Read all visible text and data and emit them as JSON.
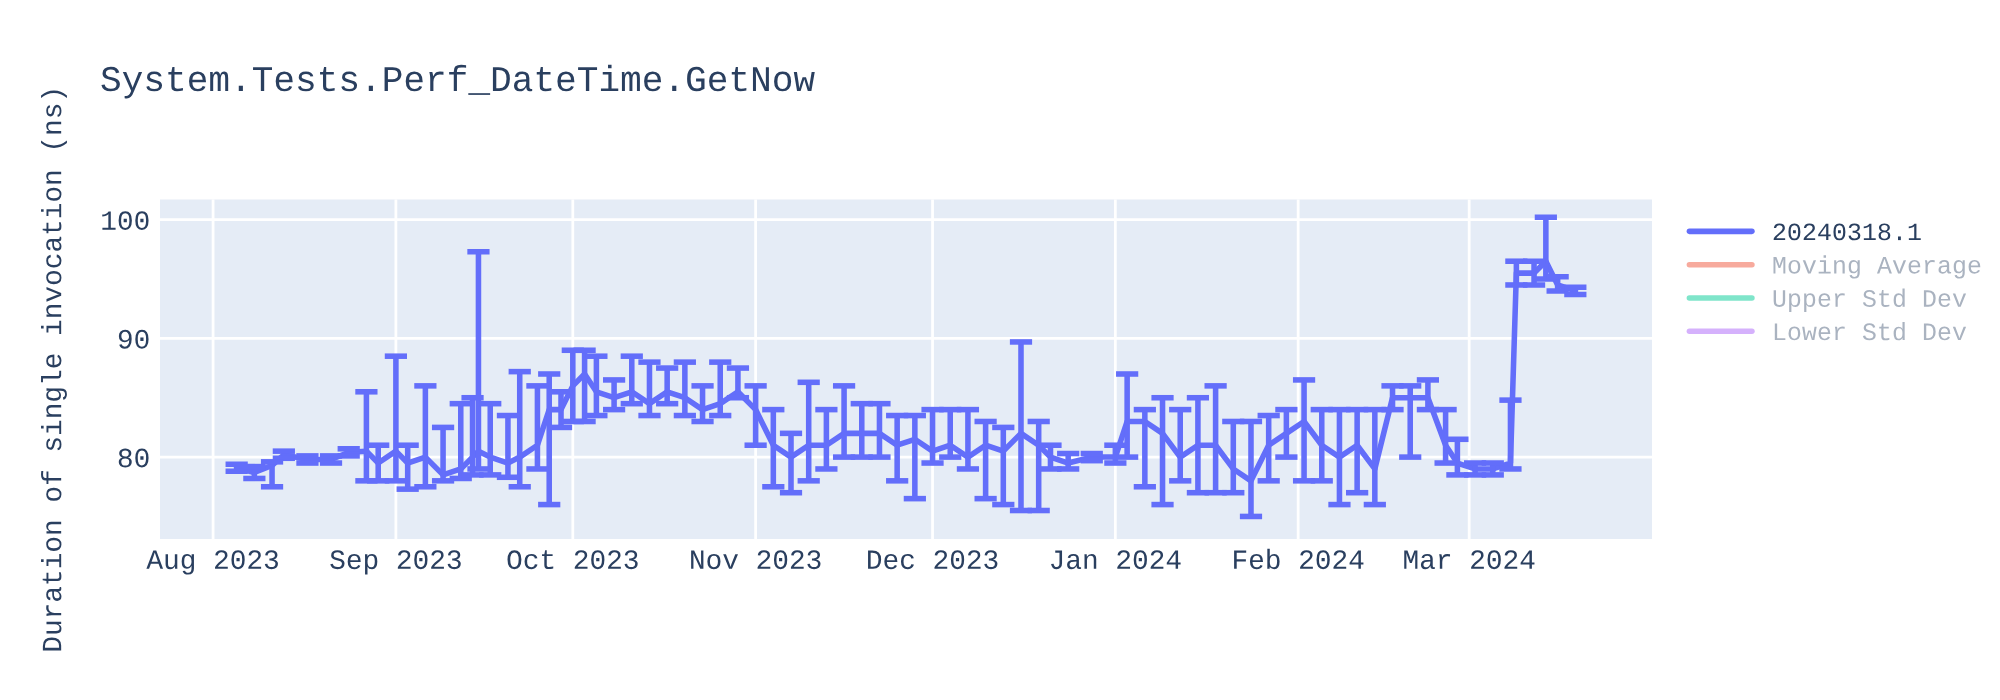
{
  "chart_data": {
    "type": "line",
    "title": "System.Tests.Perf_DateTime.GetNow",
    "ylabel": "Duration of single invocation (ns)",
    "x": [
      "2023-08-05",
      "2023-08-08",
      "2023-08-11",
      "2023-08-13",
      "2023-08-17",
      "2023-08-21",
      "2023-08-24",
      "2023-08-27",
      "2023-08-29",
      "2023-09-01",
      "2023-09-03",
      "2023-09-06",
      "2023-09-09",
      "2023-09-12",
      "2023-09-14",
      "2023-09-15",
      "2023-09-17",
      "2023-09-20",
      "2023-09-22",
      "2023-09-25",
      "2023-09-27",
      "2023-09-29",
      "2023-10-01",
      "2023-10-03",
      "2023-10-05",
      "2023-10-08",
      "2023-10-11",
      "2023-10-14",
      "2023-10-17",
      "2023-10-20",
      "2023-10-23",
      "2023-10-26",
      "2023-10-29",
      "2023-11-01",
      "2023-11-04",
      "2023-11-07",
      "2023-11-10",
      "2023-11-13",
      "2023-11-16",
      "2023-11-19",
      "2023-11-22",
      "2023-11-25",
      "2023-11-28",
      "2023-12-01",
      "2023-12-04",
      "2023-12-07",
      "2023-12-10",
      "2023-12-13",
      "2023-12-16",
      "2023-12-19",
      "2023-12-21",
      "2023-12-24",
      "2023-12-28",
      "2024-01-01",
      "2024-01-03",
      "2024-01-06",
      "2024-01-09",
      "2024-01-12",
      "2024-01-15",
      "2024-01-18",
      "2024-01-21",
      "2024-01-24",
      "2024-01-27",
      "2024-01-30",
      "2024-02-02",
      "2024-02-05",
      "2024-02-08",
      "2024-02-11",
      "2024-02-14",
      "2024-02-17",
      "2024-02-20",
      "2024-02-23",
      "2024-02-26",
      "2024-02-28",
      "2024-03-02",
      "2024-03-05",
      "2024-03-08",
      "2024-03-09",
      "2024-03-12",
      "2024-03-14",
      "2024-03-16",
      "2024-03-19"
    ],
    "series": [
      {
        "name": "20240318.1",
        "color": "#636efa",
        "values": [
          79.1,
          78.7,
          79.3,
          80.2,
          79.8,
          79.8,
          80.4,
          80.5,
          79.5,
          80.5,
          79.5,
          80,
          78.5,
          79,
          80,
          80.5,
          80,
          79.5,
          80,
          81,
          84,
          84,
          86,
          87,
          85.5,
          85,
          85.5,
          84.5,
          85.5,
          85,
          84,
          84.5,
          85.5,
          84,
          81,
          80,
          81,
          81,
          82,
          82,
          82,
          81,
          81.5,
          80.5,
          81,
          80,
          81,
          80.5,
          82,
          81,
          80,
          79.5,
          80,
          80,
          83,
          83,
          82,
          80,
          81,
          81,
          79,
          78,
          81,
          82,
          83,
          81,
          80,
          81,
          79,
          85,
          85,
          85,
          81,
          79.5,
          79,
          79,
          79.5,
          95.5,
          95.5,
          96.5,
          94.5,
          94
        ],
        "errors": [
          [
            78.8,
            79.4
          ],
          [
            78.2,
            79.2
          ],
          [
            77.5,
            79.6
          ],
          [
            79.9,
            80.5
          ],
          [
            79.5,
            80.1
          ],
          [
            79.5,
            80.1
          ],
          [
            80.1,
            80.7
          ],
          [
            78,
            85.5
          ],
          [
            78,
            81
          ],
          [
            78,
            88.5
          ],
          [
            77.3,
            81
          ],
          [
            77.5,
            86
          ],
          [
            78,
            82.5
          ],
          [
            78.2,
            84.5
          ],
          [
            78.5,
            85
          ],
          [
            79,
            97.3
          ],
          [
            78.5,
            84.5
          ],
          [
            78.3,
            83.5
          ],
          [
            77.5,
            87.2
          ],
          [
            79,
            86
          ],
          [
            76,
            87
          ],
          [
            82.5,
            85.5
          ],
          [
            83,
            89
          ],
          [
            83,
            89
          ],
          [
            83.5,
            88.5
          ],
          [
            84,
            86.5
          ],
          [
            84.5,
            88.5
          ],
          [
            83.5,
            88
          ],
          [
            84.5,
            87.5
          ],
          [
            83.5,
            88
          ],
          [
            83,
            86
          ],
          [
            83.5,
            88
          ],
          [
            85,
            87.5
          ],
          [
            81,
            86
          ],
          [
            77.5,
            84
          ],
          [
            77,
            82
          ],
          [
            78,
            86.3
          ],
          [
            79,
            84
          ],
          [
            80,
            86
          ],
          [
            80,
            84.5
          ],
          [
            80,
            84.5
          ],
          [
            78,
            83.5
          ],
          [
            76.5,
            83.5
          ],
          [
            79.5,
            84
          ],
          [
            80,
            84
          ],
          [
            79,
            84
          ],
          [
            76.5,
            83
          ],
          [
            76,
            82.5
          ],
          [
            75.5,
            89.7
          ],
          [
            75.5,
            83
          ],
          [
            79,
            81
          ],
          [
            79,
            80.3
          ],
          [
            79.7,
            80.3
          ],
          [
            79.5,
            81
          ],
          [
            80,
            87
          ],
          [
            77.5,
            84
          ],
          [
            76,
            85
          ],
          [
            78,
            84
          ],
          [
            77,
            85
          ],
          [
            77,
            86
          ],
          [
            77,
            83
          ],
          [
            75,
            83
          ],
          [
            78,
            83.5
          ],
          [
            80,
            84
          ],
          [
            78,
            86.5
          ],
          [
            78,
            84
          ],
          [
            76,
            84
          ],
          [
            77,
            84
          ],
          [
            76,
            84
          ],
          [
            84,
            86
          ],
          [
            80,
            86
          ],
          [
            84,
            86.5
          ],
          [
            79.5,
            84
          ],
          [
            78.5,
            81.5
          ],
          [
            78.5,
            79.5
          ],
          [
            78.5,
            79.5
          ],
          [
            79,
            84.8
          ],
          [
            94.5,
            96.5
          ],
          [
            94.5,
            96.5
          ],
          [
            95,
            100.2
          ],
          [
            94,
            95.2
          ],
          [
            93.7,
            94.3
          ]
        ]
      },
      {
        "name": "Moving Average",
        "color": "#ef553b",
        "values": [
          null,
          null,
          null,
          null,
          null,
          null,
          null,
          null,
          null,
          null,
          null,
          null,
          null,
          null,
          null,
          null,
          null,
          null,
          null,
          null,
          null,
          null,
          null,
          null,
          null,
          null,
          null,
          null,
          null,
          null,
          null,
          null,
          null,
          null,
          null,
          null,
          null,
          null,
          null,
          null,
          null,
          null,
          null,
          null,
          null,
          null,
          null,
          null,
          null,
          null,
          null,
          null,
          null,
          null,
          null,
          null,
          null,
          null,
          null,
          null,
          null,
          null,
          null,
          null,
          null,
          null,
          null,
          null,
          null,
          null,
          null,
          null,
          null,
          null,
          null,
          null,
          null,
          null,
          null,
          null,
          null,
          null
        ]
      },
      {
        "name": "Upper Std Dev",
        "color": "#00cc96",
        "values": [
          null,
          null,
          null,
          null,
          null,
          null,
          null,
          null,
          null,
          null,
          null,
          null,
          null,
          null,
          null,
          null,
          null,
          null,
          null,
          null,
          null,
          null,
          null,
          null,
          null,
          null,
          null,
          null,
          null,
          null,
          null,
          null,
          null,
          null,
          null,
          null,
          null,
          null,
          null,
          null,
          null,
          null,
          null,
          null,
          null,
          null,
          null,
          null,
          null,
          null,
          null,
          null,
          null,
          null,
          null,
          null,
          null,
          null,
          null,
          null,
          null,
          null,
          null,
          null,
          null,
          null,
          null,
          null,
          null,
          null,
          null,
          null,
          null,
          null,
          null,
          null,
          null,
          null,
          null,
          null,
          null,
          null
        ]
      },
      {
        "name": "Lower Std Dev",
        "color": "#ab63fa",
        "values": [
          null,
          null,
          null,
          null,
          null,
          null,
          null,
          null,
          null,
          null,
          null,
          null,
          null,
          null,
          null,
          null,
          null,
          null,
          null,
          null,
          null,
          null,
          null,
          null,
          null,
          null,
          null,
          null,
          null,
          null,
          null,
          null,
          null,
          null,
          null,
          null,
          null,
          null,
          null,
          null,
          null,
          null,
          null,
          null,
          null,
          null,
          null,
          null,
          null,
          null,
          null,
          null,
          null,
          null,
          null,
          null,
          null,
          null,
          null,
          null,
          null,
          null,
          null,
          null,
          null,
          null,
          null,
          null,
          null,
          null,
          null,
          null,
          null,
          null,
          null,
          null,
          null,
          null,
          null,
          null,
          null,
          null
        ]
      }
    ],
    "xlim": [
      "2023-07-23",
      "2024-04-01"
    ],
    "xticks": [
      {
        "value": "2023-08-01",
        "label": "Aug 2023"
      },
      {
        "value": "2023-09-01",
        "label": "Sep 2023"
      },
      {
        "value": "2023-10-01",
        "label": "Oct 2023"
      },
      {
        "value": "2023-11-01",
        "label": "Nov 2023"
      },
      {
        "value": "2023-12-01",
        "label": "Dec 2023"
      },
      {
        "value": "2024-01-01",
        "label": "Jan 2024"
      },
      {
        "value": "2024-02-01",
        "label": "Feb 2024"
      },
      {
        "value": "2024-03-01",
        "label": "Mar 2024"
      }
    ],
    "ylim": [
      73.1,
      101.7
    ],
    "yticks": [
      80,
      90,
      100
    ],
    "grid": true,
    "legend": "right",
    "marker": "none",
    "line_style": "solid"
  }
}
